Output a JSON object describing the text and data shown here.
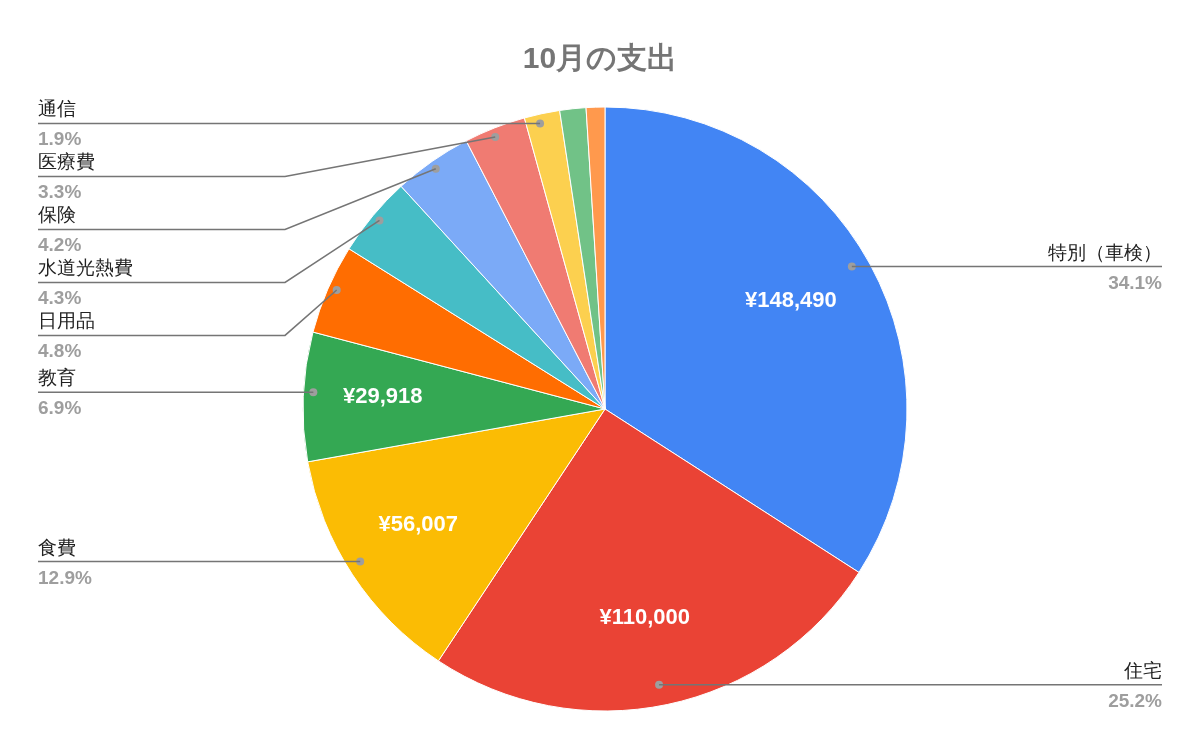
{
  "chart_data": {
    "type": "pie",
    "title": "10月の支出",
    "categories": [
      "特別（車検）",
      "住宅",
      "食費",
      "教育",
      "日用品",
      "水道光熱費",
      "保険",
      "医療費",
      "通信",
      null,
      null
    ],
    "values": [
      34.1,
      25.2,
      12.9,
      6.9,
      4.8,
      4.3,
      4.2,
      3.3,
      1.9,
      1.4,
      1.0
    ],
    "value_labels": [
      "34.1%",
      "25.2%",
      "12.9%",
      "6.9%",
      "4.8%",
      "4.3%",
      "4.2%",
      "3.3%",
      "1.9%",
      null,
      null
    ],
    "annotations": [
      {
        "text": "¥148,490",
        "x": "特別（車検）"
      },
      {
        "text": "¥110,000",
        "x": "住宅"
      },
      {
        "text": "¥56,007",
        "x": "食費"
      },
      {
        "text": "¥29,918",
        "x": "教育"
      }
    ],
    "colors": [
      "#4285f4",
      "#ea4335",
      "#fbbc04",
      "#34a853",
      "#ff6d01",
      "#46bdc6",
      "#7baaf7",
      "#f07b72",
      "#fcd04f",
      "#71c287",
      "#ff994d"
    ]
  }
}
